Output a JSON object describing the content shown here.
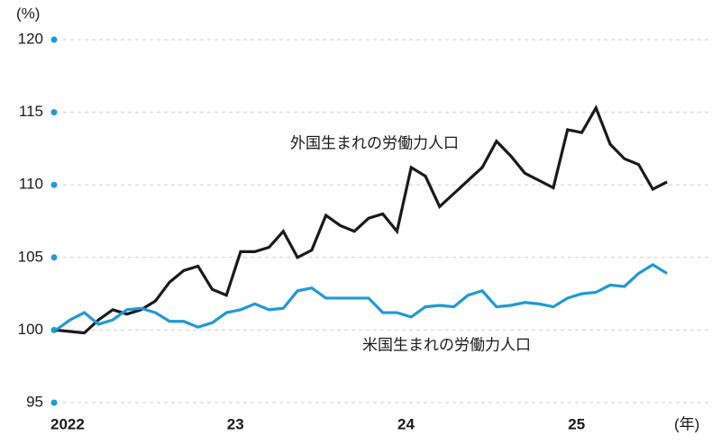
{
  "chart_data": {
    "type": "line",
    "y_unit": "(%)",
    "x_unit": "(年)",
    "categories": [
      "2022",
      null,
      null,
      null,
      null,
      null,
      null,
      null,
      null,
      null,
      null,
      null,
      "23",
      null,
      null,
      null,
      null,
      null,
      null,
      null,
      null,
      null,
      null,
      null,
      "24",
      null,
      null,
      null,
      null,
      null,
      null,
      null,
      null,
      null,
      null,
      null,
      "25",
      null,
      null,
      null,
      null,
      null,
      null,
      null
    ],
    "series": [
      {
        "name": "外国生まれの労働力人口",
        "color": "#1a1a1a",
        "values": [
          100.0,
          99.9,
          99.8,
          100.7,
          101.4,
          101.1,
          101.4,
          102.0,
          103.3,
          104.1,
          104.4,
          102.8,
          102.4,
          105.4,
          105.4,
          105.7,
          106.8,
          105.0,
          105.5,
          107.9,
          107.2,
          106.8,
          107.7,
          108.0,
          106.8,
          111.2,
          110.6,
          108.5,
          109.4,
          110.3,
          111.2,
          113.0,
          112.0,
          110.8,
          110.3,
          109.8,
          113.8,
          113.6,
          115.3,
          112.8,
          111.8,
          111.4,
          109.7,
          110.2
        ]
      },
      {
        "name": "米国生まれの労働力人口",
        "color": "#1f9ad6",
        "values": [
          100.0,
          100.7,
          101.2,
          100.4,
          100.7,
          101.4,
          101.5,
          101.2,
          100.6,
          100.6,
          100.2,
          100.5,
          101.2,
          101.4,
          101.8,
          101.4,
          101.5,
          102.7,
          102.9,
          102.2,
          102.2,
          102.2,
          102.2,
          101.2,
          101.2,
          100.9,
          101.6,
          101.7,
          101.6,
          102.4,
          102.7,
          101.6,
          101.7,
          101.9,
          101.8,
          101.6,
          102.2,
          102.5,
          102.6,
          103.1,
          103.0,
          103.9,
          104.5,
          103.9
        ]
      }
    ],
    "ylim": [
      95,
      120
    ],
    "yticks": [
      95,
      100,
      105,
      110,
      115,
      120
    ],
    "grid": true,
    "tick_dot_color": "#1f9ad6"
  }
}
